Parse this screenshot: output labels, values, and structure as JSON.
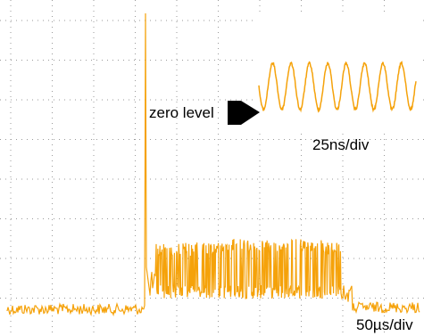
{
  "labels": {
    "zero_level": "zero level",
    "inset_timebase": "25ns/div",
    "main_timebase": "50µs/div"
  }
}
